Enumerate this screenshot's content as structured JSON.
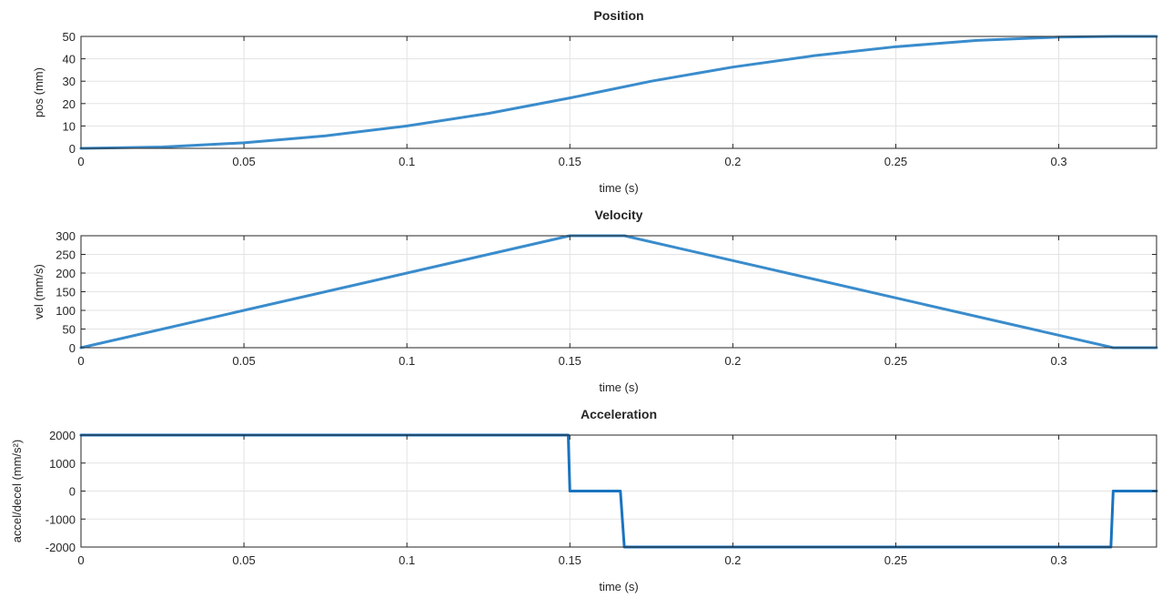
{
  "chart_data": [
    {
      "type": "line",
      "title": "Position",
      "xlabel": "time (s)",
      "ylabel": "pos (mm)",
      "xlim": [
        0,
        0.33
      ],
      "ylim": [
        0,
        50
      ],
      "xticks": [
        0,
        0.05,
        0.1,
        0.15,
        0.2,
        0.25,
        0.3
      ],
      "xtick_labels": [
        "0",
        "0.05",
        "0.1",
        "0.15",
        "0.2",
        "0.25",
        "0.3"
      ],
      "yticks": [
        0,
        10,
        20,
        30,
        40,
        50
      ],
      "ytick_labels": [
        "0",
        "10",
        "20",
        "30",
        "40",
        "50"
      ],
      "grid": true,
      "series": [
        {
          "color": "#3a8ccc",
          "x": [
            0,
            0.025,
            0.05,
            0.075,
            0.1,
            0.125,
            0.15,
            0.1583,
            0.175,
            0.2,
            0.225,
            0.25,
            0.275,
            0.3,
            0.3167,
            0.33
          ],
          "y": [
            0,
            0.63,
            2.5,
            5.6,
            10,
            15.6,
            22.5,
            25,
            30,
            36.3,
            41.4,
            45.4,
            48.2,
            49.7,
            50,
            50
          ]
        }
      ]
    },
    {
      "type": "line",
      "title": "Velocity",
      "xlabel": "time (s)",
      "ylabel": "vel (mm/s)",
      "xlim": [
        0,
        0.33
      ],
      "ylim": [
        0,
        300
      ],
      "xticks": [
        0,
        0.05,
        0.1,
        0.15,
        0.2,
        0.25,
        0.3
      ],
      "xtick_labels": [
        "0",
        "0.05",
        "0.1",
        "0.15",
        "0.2",
        "0.25",
        "0.3"
      ],
      "yticks": [
        0,
        50,
        100,
        150,
        200,
        250,
        300
      ],
      "ytick_labels": [
        "0",
        "50",
        "100",
        "150",
        "200",
        "250",
        "300"
      ],
      "grid": true,
      "series": [
        {
          "color": "#3a8ccc",
          "x": [
            0,
            0.15,
            0.1667,
            0.3167,
            0.33
          ],
          "y": [
            0,
            300,
            300,
            0,
            0
          ]
        }
      ]
    },
    {
      "type": "line",
      "title": "Acceleration",
      "xlabel": "time (s)",
      "ylabel": "accel/decel (mm/s²)",
      "xlim": [
        0,
        0.33
      ],
      "ylim": [
        -2000,
        2000
      ],
      "xticks": [
        0,
        0.05,
        0.1,
        0.15,
        0.2,
        0.25,
        0.3
      ],
      "xtick_labels": [
        "0",
        "0.05",
        "0.1",
        "0.15",
        "0.2",
        "0.25",
        "0.3"
      ],
      "yticks": [
        -2000,
        -1000,
        0,
        1000,
        2000
      ],
      "ytick_labels": [
        "-2000",
        "-1000",
        "0",
        "1000",
        "2000"
      ],
      "grid": true,
      "series": [
        {
          "color": "#1a73bf",
          "x": [
            0,
            0.1495,
            0.15,
            0.1655,
            0.1667,
            0.316,
            0.3167,
            0.33
          ],
          "y": [
            2000,
            2000,
            0,
            0,
            -2000,
            -2000,
            0,
            0
          ]
        }
      ]
    }
  ]
}
